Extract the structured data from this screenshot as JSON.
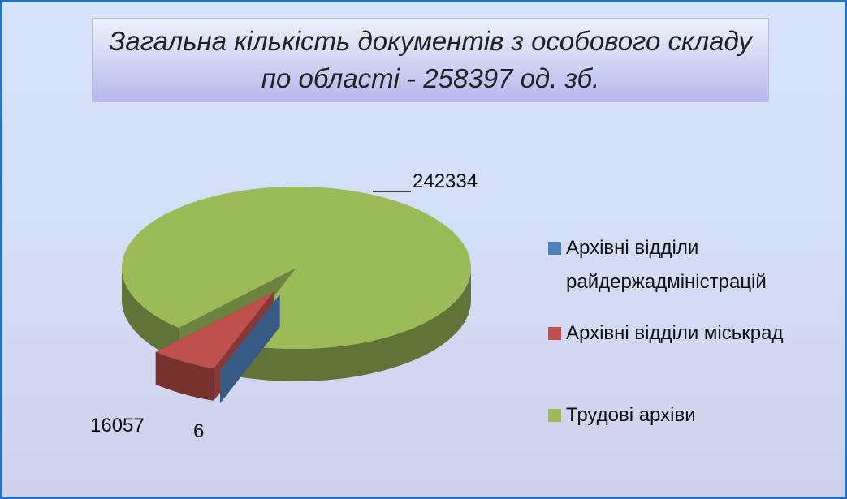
{
  "chart_data": {
    "type": "pie3d",
    "title": "Загальна кількість документів з особового складу по області - 258397 од. зб.",
    "categories": [
      "Архівні відділи райдержадміністрацій",
      "Архівні відділи міськрад",
      "Трудові архіви"
    ],
    "values": [
      6,
      16057,
      242334
    ],
    "colors": [
      "#4f81bd",
      "#c0504d",
      "#9bbb59"
    ],
    "exploded": [
      true,
      true,
      false
    ],
    "legend_position": "right"
  }
}
